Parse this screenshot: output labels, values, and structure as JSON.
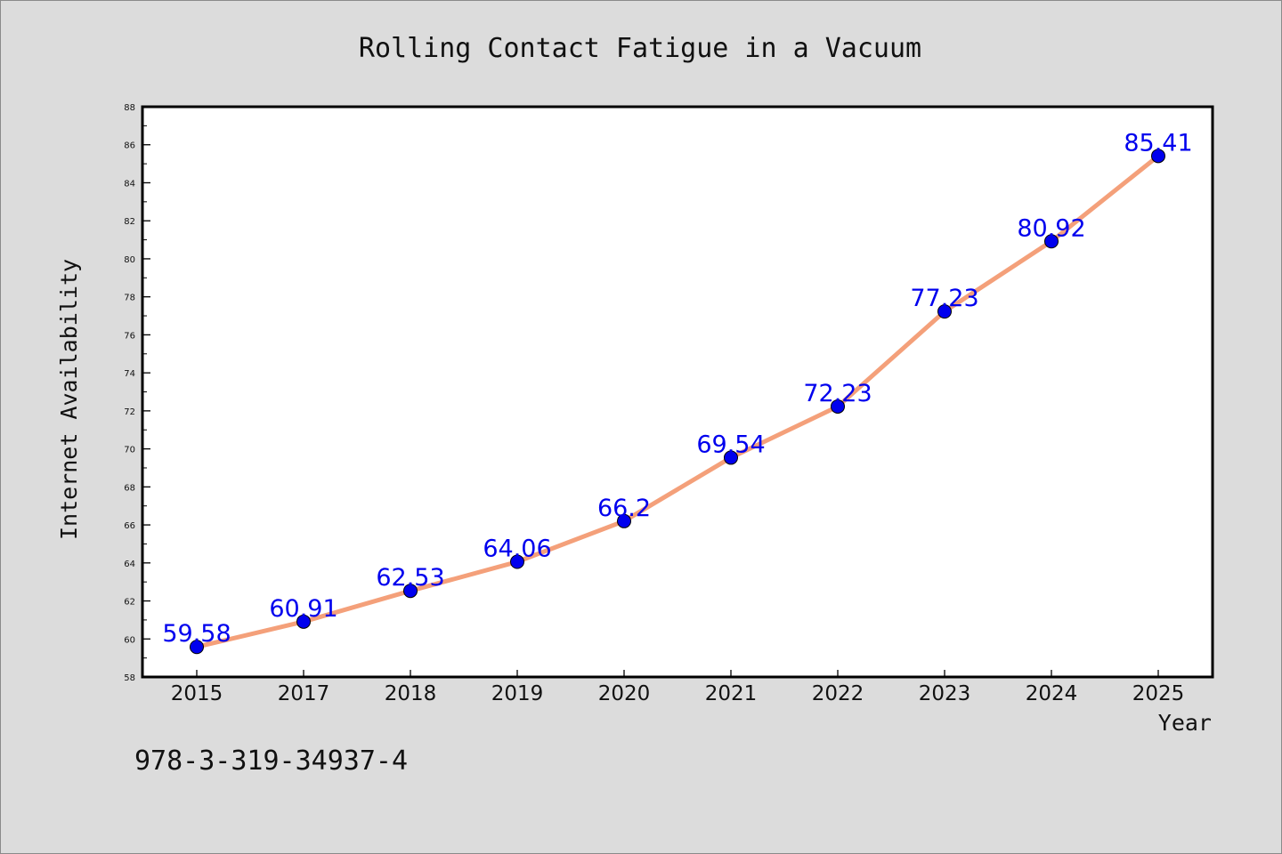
{
  "chart_data": {
    "type": "line",
    "title": "Rolling Contact Fatigue in a Vacuum",
    "xlabel": "Year",
    "ylabel": "Internet Availability",
    "categories": [
      "2015",
      "2017",
      "2018",
      "2019",
      "2020",
      "2021",
      "2022",
      "2023",
      "2024",
      "2025"
    ],
    "series": [
      {
        "values": [
          59.58,
          60.91,
          62.53,
          64.06,
          66.2,
          69.54,
          72.23,
          77.23,
          80.92,
          85.41
        ],
        "labels": [
          "59.58",
          "60.91",
          "62.53",
          "64.06",
          "66.2",
          "69.54",
          "72.23",
          "77.23",
          "80.92",
          "85.41"
        ],
        "line_color": "#f4a07a",
        "marker_color": "#0000ee"
      }
    ],
    "ylim": [
      58,
      88
    ],
    "yticks": [
      "58",
      "60",
      "62",
      "64",
      "66",
      "68",
      "70",
      "72",
      "74",
      "76",
      "78",
      "80",
      "82",
      "84",
      "86",
      "88"
    ],
    "grid": false,
    "legend": "none"
  },
  "footer": {
    "isbn": "978-3-319-34937-4"
  },
  "colors": {
    "background": "#dcdcdc",
    "plot_background": "#ffffff",
    "line": "#f4a07a",
    "marker": "#0000ee",
    "label": "#0000ee"
  }
}
